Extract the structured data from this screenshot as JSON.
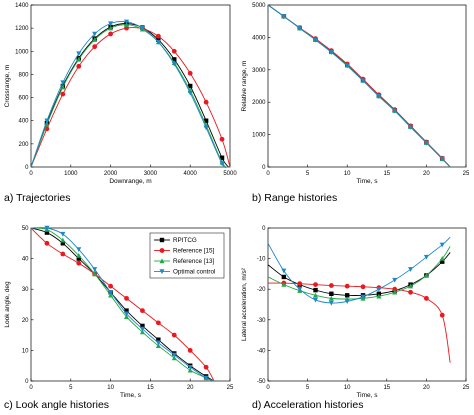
{
  "figure": {
    "series_styles": [
      {
        "name": "RPITCG",
        "color": "#000000",
        "marker": "square"
      },
      {
        "name": "Reference [15]",
        "color": "#e8191f",
        "marker": "circle"
      },
      {
        "name": "Reference [13]",
        "color": "#20a84a",
        "marker": "triangle-up"
      },
      {
        "name": "Optimal control",
        "color": "#1e88c8",
        "marker": "triangle-down"
      }
    ]
  },
  "chart_data": [
    {
      "id": "a",
      "type": "line",
      "caption": "a) Trajectories",
      "xlabel": "Downrange, m",
      "ylabel": "Crossrange, m",
      "xlim": [
        0,
        5000
      ],
      "ylim": [
        0,
        1400
      ],
      "xticks": [
        0,
        1000,
        2000,
        3000,
        4000,
        5000
      ],
      "yticks": [
        0,
        200,
        400,
        600,
        800,
        1000,
        1200,
        1400
      ],
      "legend": false,
      "series": [
        {
          "name": "RPITCG",
          "x": [
            0,
            400,
            800,
            1200,
            1600,
            2000,
            2400,
            2800,
            3200,
            3600,
            4000,
            4400,
            4800,
            4960
          ],
          "y": [
            0,
            380,
            700,
            940,
            1110,
            1210,
            1240,
            1205,
            1100,
            930,
            700,
            400,
            80,
            0
          ]
        },
        {
          "name": "Reference [15]",
          "x": [
            0,
            400,
            800,
            1200,
            1600,
            2000,
            2400,
            2800,
            3200,
            3600,
            4000,
            4400,
            4800,
            5000
          ],
          "y": [
            0,
            330,
            630,
            870,
            1040,
            1150,
            1200,
            1195,
            1130,
            1000,
            810,
            560,
            240,
            0
          ]
        },
        {
          "name": "Reference [13]",
          "x": [
            0,
            400,
            800,
            1200,
            1600,
            2000,
            2400,
            2800,
            3200,
            3600,
            4000,
            4400,
            4800,
            4950
          ],
          "y": [
            0,
            370,
            690,
            930,
            1100,
            1200,
            1230,
            1190,
            1080,
            900,
            660,
            360,
            40,
            0
          ]
        },
        {
          "name": "Optimal control",
          "x": [
            0,
            400,
            800,
            1200,
            1600,
            2000,
            2400,
            2800,
            3200,
            3600,
            4000,
            4400,
            4800,
            4930
          ],
          "y": [
            0,
            400,
            730,
            980,
            1150,
            1240,
            1255,
            1200,
            1080,
            890,
            640,
            340,
            30,
            0
          ]
        }
      ]
    },
    {
      "id": "b",
      "type": "line",
      "caption": "b) Range histories",
      "xlabel": "Time, s",
      "ylabel": "Relative range, m",
      "xlim": [
        0,
        25
      ],
      "ylim": [
        0,
        5000
      ],
      "xticks": [
        0,
        5,
        10,
        15,
        20,
        25
      ],
      "yticks": [
        0,
        1000,
        2000,
        3000,
        4000,
        5000
      ],
      "legend": false,
      "series": [
        {
          "name": "RPITCG",
          "x": [
            0,
            2,
            4,
            6,
            8,
            10,
            12,
            14,
            16,
            18,
            20,
            22,
            23
          ],
          "y": [
            5000,
            4650,
            4290,
            3930,
            3560,
            3150,
            2680,
            2200,
            1750,
            1250,
            760,
            260,
            0
          ]
        },
        {
          "name": "Reference [15]",
          "x": [
            0,
            2,
            4,
            6,
            8,
            10,
            12,
            14,
            16,
            18,
            20,
            22,
            23
          ],
          "y": [
            5000,
            4650,
            4300,
            3960,
            3590,
            3180,
            2710,
            2230,
            1770,
            1270,
            770,
            270,
            0
          ]
        },
        {
          "name": "Reference [13]",
          "x": [
            0,
            2,
            4,
            6,
            8,
            10,
            12,
            14,
            16,
            18,
            20,
            22,
            23
          ],
          "y": [
            5000,
            4650,
            4290,
            3930,
            3550,
            3140,
            2670,
            2190,
            1740,
            1240,
            750,
            250,
            0
          ]
        },
        {
          "name": "Optimal control",
          "x": [
            0,
            2,
            4,
            6,
            8,
            10,
            12,
            14,
            16,
            18,
            20,
            22,
            23
          ],
          "y": [
            5000,
            4650,
            4280,
            3920,
            3540,
            3120,
            2660,
            2180,
            1730,
            1230,
            740,
            250,
            0
          ]
        }
      ]
    },
    {
      "id": "c",
      "type": "line",
      "caption": "c) Look angle histories",
      "xlabel": "Time, s",
      "ylabel": "Look angle, deg",
      "xlim": [
        0,
        25
      ],
      "ylim": [
        0,
        50
      ],
      "xticks": [
        0,
        5,
        10,
        15,
        20,
        25
      ],
      "yticks": [
        0,
        10,
        20,
        30,
        40,
        50
      ],
      "legend": true,
      "legend_position": "top-right",
      "series": [
        {
          "name": "RPITCG",
          "x": [
            0,
            2,
            4,
            6,
            8,
            10,
            12,
            14,
            16,
            18,
            20,
            22,
            23
          ],
          "y": [
            50,
            48.5,
            45,
            40,
            35,
            29,
            23,
            18,
            13.5,
            9,
            5,
            1.5,
            0
          ]
        },
        {
          "name": "Reference [15]",
          "x": [
            0,
            2,
            4,
            6,
            8,
            10,
            12,
            14,
            16,
            18,
            20,
            22,
            23
          ],
          "y": [
            50,
            45,
            41.5,
            38.5,
            35,
            31,
            27,
            23,
            19,
            15,
            10,
            4.5,
            0
          ]
        },
        {
          "name": "Reference [13]",
          "x": [
            0,
            2,
            4,
            6,
            8,
            10,
            12,
            14,
            16,
            18,
            20,
            22,
            23
          ],
          "y": [
            50,
            49.5,
            46,
            41,
            35,
            28,
            21,
            16,
            11.5,
            7.5,
            3.5,
            1,
            0
          ]
        },
        {
          "name": "Optimal control",
          "x": [
            0,
            2,
            4,
            6,
            8,
            10,
            12,
            14,
            16,
            18,
            20,
            22,
            23
          ],
          "y": [
            50,
            50,
            48,
            43,
            36.5,
            29,
            22,
            17,
            12.5,
            8.5,
            4.5,
            1,
            0
          ]
        }
      ]
    },
    {
      "id": "d",
      "type": "line",
      "caption": "d) Acceleration histories",
      "xlabel": "Time, s",
      "ylabel": "Lateral acceleration, m/s²",
      "xlim": [
        0,
        25
      ],
      "ylim": [
        -50,
        0
      ],
      "xticks": [
        0,
        5,
        10,
        15,
        20,
        25
      ],
      "yticks": [
        -50,
        -40,
        -30,
        -20,
        -10,
        0
      ],
      "legend": false,
      "series": [
        {
          "name": "RPITCG",
          "x": [
            0,
            2,
            4,
            6,
            8,
            10,
            12,
            14,
            16,
            18,
            20,
            22,
            23
          ],
          "y": [
            -12,
            -16,
            -18.5,
            -20.3,
            -21.5,
            -22,
            -22,
            -21.5,
            -20.5,
            -18.5,
            -15.5,
            -11,
            -8
          ]
        },
        {
          "name": "Reference [15]",
          "x": [
            0,
            2,
            4,
            6,
            8,
            10,
            12,
            14,
            16,
            18,
            20,
            22,
            23
          ],
          "y": [
            -18,
            -18,
            -18.2,
            -18.5,
            -18.8,
            -19,
            -19.2,
            -19.5,
            -20,
            -21,
            -23,
            -28.5,
            -44
          ]
        },
        {
          "name": "Reference [13]",
          "x": [
            0,
            2,
            4,
            6,
            8,
            10,
            12,
            14,
            16,
            18,
            20,
            22,
            23
          ],
          "y": [
            -16,
            -18.5,
            -20.5,
            -22,
            -23,
            -23.2,
            -23,
            -22.3,
            -21,
            -19,
            -15.5,
            -10,
            -6
          ]
        },
        {
          "name": "Optimal control",
          "x": [
            0,
            2,
            4,
            6,
            8,
            10,
            12,
            14,
            16,
            18,
            20,
            22,
            23
          ],
          "y": [
            -5,
            -14,
            -20,
            -23.5,
            -24.5,
            -24,
            -22.5,
            -20,
            -17,
            -13.5,
            -9.5,
            -5.5,
            -3
          ]
        }
      ]
    }
  ]
}
